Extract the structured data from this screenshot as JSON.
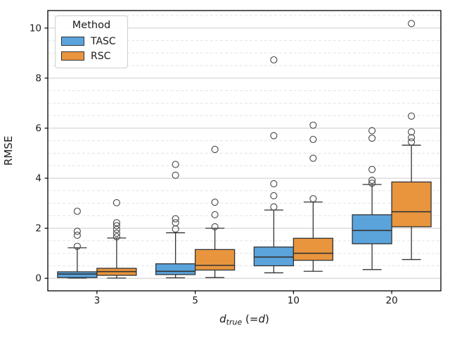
{
  "figure": {
    "background": "#ffffff"
  },
  "legend": {
    "title": "Method",
    "entries": [
      "TASC",
      "RSC"
    ]
  },
  "xlabel": {
    "var1": "d",
    "sub": "true",
    "mid": " (=",
    "var2": "d",
    "end": ")"
  },
  "chart_data": {
    "type": "boxplot",
    "title": "",
    "xlabel": "d_true (=d)",
    "ylabel": "RMSE",
    "categories": [
      "3",
      "5",
      "10",
      "20"
    ],
    "ylim": [
      -0.5,
      10.7
    ],
    "yticks": [
      0,
      2,
      4,
      6,
      8,
      10
    ],
    "minor_tick_step": 0.5,
    "grid": {
      "major": "solid",
      "minor": "dashed",
      "major_color": "#cccccc",
      "minor_color": "#e4e4e4"
    },
    "legend_position": "upper left",
    "style": {
      "box_edge": "#333333",
      "text": "#1a1a1a",
      "frame": "#000000"
    },
    "series": [
      {
        "name": "TASC",
        "color": "#5BA3DB",
        "boxes": [
          {
            "category": "3",
            "whislo": 0.01,
            "q1": 0.03,
            "med": 0.17,
            "q3": 0.26,
            "whishi": 1.22,
            "fliers": [
              1.28,
              1.72,
              1.88,
              2.68
            ]
          },
          {
            "category": "5",
            "whislo": 0.02,
            "q1": 0.15,
            "med": 0.28,
            "q3": 0.58,
            "whishi": 1.82,
            "fliers": [
              1.97,
              2.22,
              2.38,
              4.12,
              4.55
            ]
          },
          {
            "category": "10",
            "whislo": 0.22,
            "q1": 0.5,
            "med": 0.85,
            "q3": 1.25,
            "whishi": 2.73,
            "fliers": [
              2.85,
              3.3,
              3.78,
              5.7,
              8.73
            ]
          },
          {
            "category": "20",
            "whislo": 0.35,
            "q1": 1.38,
            "med": 1.91,
            "q3": 2.54,
            "whishi": 3.75,
            "fliers": [
              3.8,
              3.92,
              4.35,
              5.6,
              5.9
            ]
          }
        ]
      },
      {
        "name": "RSC",
        "color": "#E8953E",
        "boxes": [
          {
            "category": "3",
            "whislo": 0.01,
            "q1": 0.12,
            "med": 0.27,
            "q3": 0.4,
            "whishi": 1.61,
            "fliers": [
              1.66,
              1.8,
              1.95,
              2.1,
              2.22,
              3.02
            ]
          },
          {
            "category": "5",
            "whislo": 0.03,
            "q1": 0.33,
            "med": 0.52,
            "q3": 1.15,
            "whishi": 2.0,
            "fliers": [
              2.06,
              2.54,
              3.04,
              5.15
            ]
          },
          {
            "category": "10",
            "whislo": 0.28,
            "q1": 0.72,
            "med": 1.0,
            "q3": 1.6,
            "whishi": 3.05,
            "fliers": [
              3.18,
              4.8,
              5.55,
              6.12
            ]
          },
          {
            "category": "20",
            "whislo": 0.75,
            "q1": 2.06,
            "med": 2.66,
            "q3": 3.85,
            "whishi": 5.32,
            "fliers": [
              5.45,
              5.62,
              5.85,
              6.48,
              10.18
            ]
          }
        ]
      }
    ]
  }
}
